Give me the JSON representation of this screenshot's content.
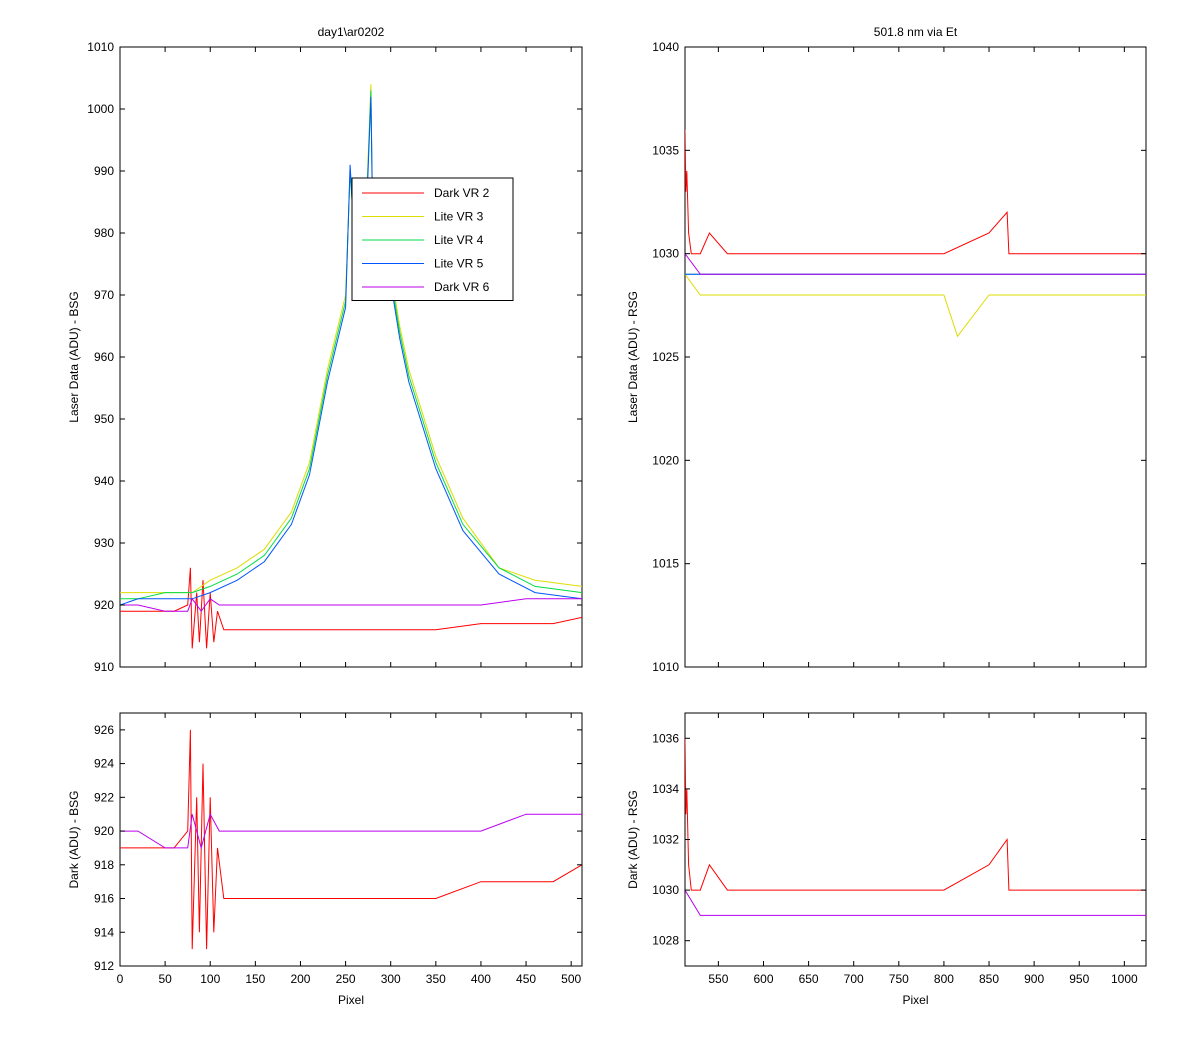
{
  "chart_data": [
    {
      "id": "top-left",
      "type": "line",
      "title": "day1\\ar0202",
      "xlabel": "",
      "ylabel": "Laser Data (ADU) - BSG",
      "xlim": [
        0,
        512
      ],
      "ylim": [
        910,
        1010
      ],
      "xticks": [],
      "yticks": [
        910,
        920,
        930,
        940,
        950,
        960,
        970,
        980,
        990,
        1000,
        1010
      ],
      "legend": {
        "placement": "inside-center",
        "entries": [
          {
            "name": "Dark VR 2",
            "color": "#ff0000"
          },
          {
            "name": "Lite VR 3",
            "color": "#dddd00"
          },
          {
            "name": "Lite VR 4",
            "color": "#00dd44"
          },
          {
            "name": "Lite VR 5",
            "color": "#0055ff"
          },
          {
            "name": "Dark VR 6",
            "color": "#bb00ee"
          }
        ]
      },
      "series": [
        {
          "name": "Dark VR 2",
          "color": "#ff0000",
          "x": [
            0,
            20,
            40,
            60,
            75,
            78,
            80,
            85,
            88,
            92,
            96,
            100,
            104,
            108,
            115,
            130,
            160,
            200,
            250,
            300,
            350,
            400,
            450,
            480,
            512
          ],
          "y": [
            919,
            919,
            919,
            919,
            920,
            926,
            913,
            922,
            914,
            924,
            913,
            922,
            914,
            919,
            916,
            916,
            916,
            916,
            916,
            916,
            916,
            917,
            917,
            917,
            918
          ]
        },
        {
          "name": "Lite VR 3",
          "color": "#dddd00",
          "x": [
            0,
            20,
            50,
            80,
            100,
            130,
            160,
            190,
            210,
            230,
            250,
            255,
            262,
            270,
            278,
            280,
            290,
            300,
            310,
            320,
            350,
            380,
            420,
            460,
            512
          ],
          "y": [
            922,
            922,
            922,
            922,
            924,
            926,
            929,
            935,
            943,
            958,
            970,
            990,
            975,
            973,
            1004,
            983,
            979,
            974,
            965,
            958,
            944,
            934,
            926,
            924,
            923
          ]
        },
        {
          "name": "Lite VR 4",
          "color": "#00dd44",
          "x": [
            0,
            20,
            50,
            80,
            100,
            130,
            160,
            190,
            210,
            230,
            250,
            255,
            262,
            270,
            278,
            280,
            290,
            300,
            310,
            320,
            350,
            380,
            420,
            460,
            512
          ],
          "y": [
            921,
            921,
            922,
            922,
            923,
            925,
            928,
            934,
            942,
            957,
            969,
            990,
            974,
            972,
            1003,
            982,
            978,
            973,
            964,
            957,
            943,
            933,
            926,
            923,
            922
          ]
        },
        {
          "name": "Lite VR 5",
          "color": "#0055ff",
          "x": [
            0,
            20,
            50,
            80,
            100,
            130,
            160,
            190,
            210,
            230,
            250,
            255,
            262,
            270,
            278,
            280,
            290,
            300,
            310,
            320,
            350,
            380,
            420,
            460,
            512
          ],
          "y": [
            920,
            921,
            921,
            921,
            922,
            924,
            927,
            933,
            941,
            956,
            968,
            991,
            973,
            971,
            1002,
            981,
            977,
            972,
            963,
            956,
            942,
            932,
            925,
            922,
            921
          ]
        },
        {
          "name": "Dark VR 6",
          "color": "#bb00ee",
          "x": [
            0,
            20,
            50,
            75,
            80,
            90,
            100,
            110,
            130,
            160,
            200,
            250,
            300,
            350,
            400,
            450,
            512
          ],
          "y": [
            920,
            920,
            919,
            919,
            921,
            919,
            921,
            920,
            920,
            920,
            920,
            920,
            920,
            920,
            920,
            921,
            921
          ]
        }
      ]
    },
    {
      "id": "top-right",
      "type": "line",
      "title": "501.8 nm via Et",
      "xlabel": "",
      "ylabel": "Laser Data (ADU) - RSG",
      "xlim": [
        513,
        1024
      ],
      "ylim": [
        1010,
        1040
      ],
      "xticks": [],
      "yticks": [
        1010,
        1015,
        1020,
        1025,
        1030,
        1035,
        1040
      ],
      "series": [
        {
          "name": "Dark VR 2",
          "color": "#ff0000",
          "x": [
            513,
            514,
            515,
            517,
            520,
            530,
            540,
            560,
            600,
            650,
            700,
            750,
            800,
            850,
            870,
            872,
            900,
            950,
            1000,
            1024
          ],
          "y": [
            1036,
            1033,
            1034,
            1031,
            1030,
            1030,
            1031,
            1030,
            1030,
            1030,
            1030,
            1030,
            1030,
            1031,
            1032,
            1030,
            1030,
            1030,
            1030,
            1030
          ]
        },
        {
          "name": "Lite VR 3",
          "color": "#dddd00",
          "x": [
            513,
            530,
            550,
            600,
            650,
            700,
            750,
            800,
            815,
            850,
            900,
            950,
            1000,
            1024
          ],
          "y": [
            1029,
            1028,
            1028,
            1028,
            1028,
            1028,
            1028,
            1028,
            1026,
            1028,
            1028,
            1028,
            1028,
            1028
          ]
        },
        {
          "name": "Lite VR 4",
          "color": "#00dd44",
          "x": [
            513,
            530,
            550,
            600,
            650,
            700,
            750,
            800,
            850,
            900,
            950,
            1000,
            1024
          ],
          "y": [
            1029,
            1029,
            1029,
            1029,
            1029,
            1029,
            1029,
            1029,
            1029,
            1029,
            1029,
            1029,
            1029
          ]
        },
        {
          "name": "Lite VR 5",
          "color": "#0055ff",
          "x": [
            513,
            530,
            550,
            600,
            650,
            700,
            750,
            800,
            850,
            900,
            950,
            1000,
            1024
          ],
          "y": [
            1029,
            1029,
            1029,
            1029,
            1029,
            1029,
            1029,
            1029,
            1029,
            1029,
            1029,
            1029,
            1029
          ]
        },
        {
          "name": "Dark VR 6",
          "color": "#bb00ee",
          "x": [
            513,
            530,
            550,
            600,
            650,
            700,
            750,
            800,
            850,
            900,
            950,
            1000,
            1024
          ],
          "y": [
            1030,
            1029,
            1029,
            1029,
            1029,
            1029,
            1029,
            1029,
            1029,
            1029,
            1029,
            1029,
            1029
          ]
        }
      ]
    },
    {
      "id": "bottom-left",
      "type": "line",
      "title": "",
      "xlabel": "Pixel",
      "ylabel": "Dark (ADU) - BSG",
      "xlim": [
        0,
        512
      ],
      "ylim": [
        912,
        927
      ],
      "xticks": [
        0,
        50,
        100,
        150,
        200,
        250,
        300,
        350,
        400,
        450,
        500
      ],
      "yticks": [
        912,
        914,
        916,
        918,
        920,
        922,
        924,
        926
      ],
      "series": [
        {
          "name": "Dark VR 2",
          "color": "#ff0000",
          "x": [
            0,
            20,
            40,
            60,
            75,
            78,
            80,
            85,
            88,
            92,
            96,
            100,
            104,
            108,
            115,
            130,
            160,
            200,
            250,
            300,
            350,
            400,
            450,
            480,
            512
          ],
          "y": [
            919,
            919,
            919,
            919,
            920,
            926,
            913,
            922,
            914,
            924,
            913,
            922,
            914,
            919,
            916,
            916,
            916,
            916,
            916,
            916,
            916,
            917,
            917,
            917,
            918
          ]
        },
        {
          "name": "Dark VR 6",
          "color": "#bb00ee",
          "x": [
            0,
            20,
            50,
            75,
            80,
            90,
            100,
            110,
            130,
            160,
            200,
            250,
            300,
            350,
            400,
            450,
            512
          ],
          "y": [
            920,
            920,
            919,
            919,
            921,
            919,
            921,
            920,
            920,
            920,
            920,
            920,
            920,
            920,
            920,
            921,
            921
          ]
        }
      ]
    },
    {
      "id": "bottom-right",
      "type": "line",
      "title": "",
      "xlabel": "Pixel",
      "ylabel": "Dark (ADU) - RSG",
      "xlim": [
        513,
        1024
      ],
      "ylim": [
        1027,
        1037
      ],
      "xticks": [
        550,
        600,
        650,
        700,
        750,
        800,
        850,
        900,
        950,
        1000
      ],
      "yticks": [
        1028,
        1030,
        1032,
        1034,
        1036
      ],
      "series": [
        {
          "name": "Dark VR 2",
          "color": "#ff0000",
          "x": [
            513,
            514,
            515,
            517,
            520,
            530,
            540,
            560,
            600,
            650,
            700,
            750,
            800,
            850,
            870,
            872,
            900,
            950,
            1000,
            1024
          ],
          "y": [
            1036,
            1033,
            1034,
            1031,
            1030,
            1030,
            1031,
            1030,
            1030,
            1030,
            1030,
            1030,
            1030,
            1031,
            1032,
            1030,
            1030,
            1030,
            1030,
            1030
          ]
        },
        {
          "name": "Dark VR 6",
          "color": "#bb00ee",
          "x": [
            513,
            530,
            550,
            600,
            650,
            700,
            750,
            800,
            850,
            900,
            950,
            1000,
            1024
          ],
          "y": [
            1030,
            1029,
            1029,
            1029,
            1029,
            1029,
            1029,
            1029,
            1029,
            1029,
            1029,
            1029,
            1029
          ]
        }
      ]
    }
  ]
}
